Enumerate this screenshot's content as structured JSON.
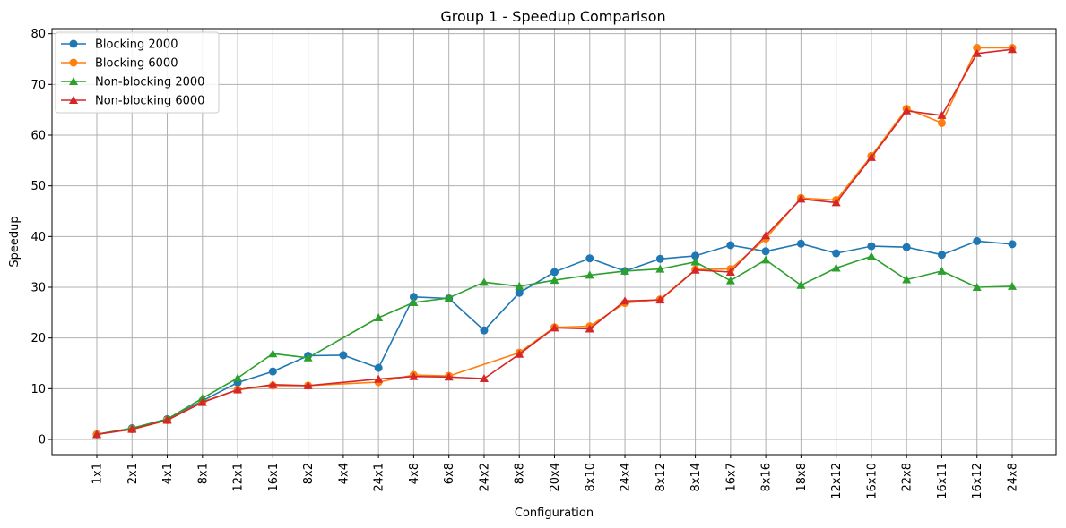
{
  "chart_data": {
    "type": "line",
    "title": "Group 1 - Speedup Comparison",
    "xlabel": "Configuration",
    "ylabel": "Speedup",
    "ylim": [
      -3,
      81
    ],
    "yticks": [
      0,
      10,
      20,
      30,
      40,
      50,
      60,
      70,
      80
    ],
    "grid": true,
    "legend_position": "upper-left",
    "categories": [
      "1x1",
      "2x1",
      "4x1",
      "8x1",
      "12x1",
      "16x1",
      "8x2",
      "4x4",
      "24x1",
      "4x8",
      "6x8",
      "24x2",
      "8x8",
      "20x4",
      "8x10",
      "24x4",
      "8x12",
      "8x14",
      "16x7",
      "8x16",
      "18x8",
      "12x12",
      "16x10",
      "22x8",
      "16x11",
      "16x12",
      "24x8"
    ],
    "series": [
      {
        "name": "Blocking 2000",
        "color": "#1f77b4",
        "marker": "circle",
        "values": [
          1.0,
          2.2,
          4.0,
          7.6,
          11.2,
          13.4,
          16.5,
          16.6,
          14.1,
          28.1,
          27.8,
          21.5,
          28.9,
          33.0,
          35.7,
          33.2,
          35.6,
          36.2,
          38.3,
          37.1,
          38.6,
          36.7,
          38.1,
          37.9,
          36.4,
          39.1,
          38.5
        ]
      },
      {
        "name": "Blocking 6000",
        "color": "#ff7f0e",
        "marker": "circle",
        "values": [
          1.0,
          2.0,
          3.8,
          7.4,
          9.8,
          10.6,
          10.6,
          null,
          11.3,
          12.7,
          12.5,
          null,
          17.1,
          22.1,
          22.3,
          26.9,
          27.6,
          33.5,
          33.6,
          39.6,
          47.6,
          47.2,
          55.9,
          65.2,
          62.4,
          77.2,
          77.2
        ]
      },
      {
        "name": "Non-blocking 2000",
        "color": "#2ca02c",
        "marker": "triangle",
        "values": [
          1.0,
          2.2,
          4.0,
          8.1,
          12.1,
          16.9,
          16.1,
          null,
          24.0,
          27.0,
          27.9,
          31.0,
          30.2,
          31.4,
          32.4,
          33.2,
          33.6,
          35.0,
          31.3,
          35.4,
          30.4,
          33.8,
          36.1,
          31.5,
          33.2,
          30.0,
          30.2
        ]
      },
      {
        "name": "Non-blocking 6000",
        "color": "#d62728",
        "marker": "triangle",
        "values": [
          1.0,
          2.0,
          3.8,
          7.3,
          9.8,
          10.8,
          10.6,
          null,
          11.9,
          12.4,
          12.3,
          12.0,
          16.8,
          22.0,
          21.8,
          27.3,
          27.5,
          33.4,
          33.0,
          40.2,
          47.4,
          46.7,
          55.6,
          64.8,
          63.9,
          76.1,
          76.9
        ]
      }
    ]
  }
}
